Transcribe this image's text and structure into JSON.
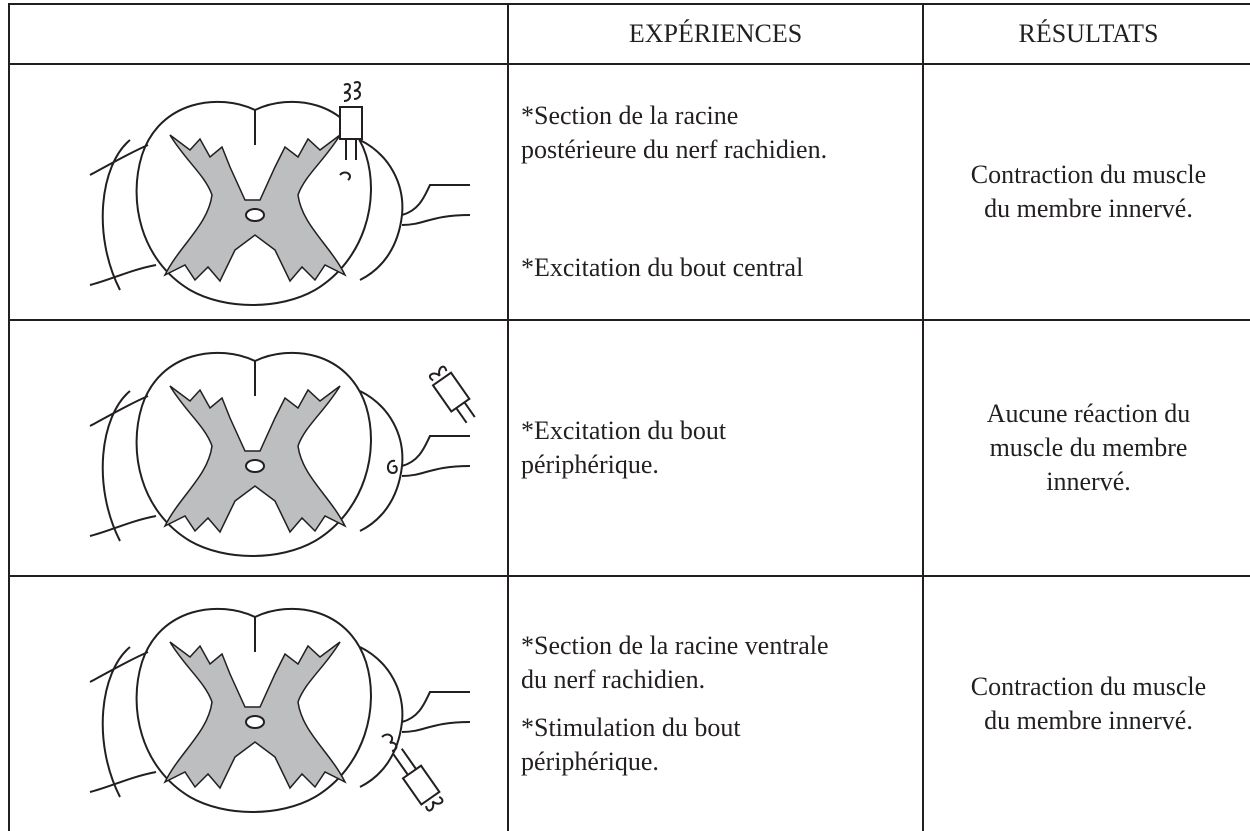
{
  "header": {
    "experiences": "EXPÉRIENCES",
    "resultats": "RÉSULTATS"
  },
  "rows": [
    {
      "experiences": [
        [
          "*Section de la racine",
          "postérieure du nerf rachidien."
        ],
        [
          "*Excitation du bout central"
        ]
      ],
      "resultat": [
        "Contraction du muscle",
        "du membre innervé."
      ]
    },
    {
      "experiences": [
        [
          "*Excitation du bout",
          "périphérique."
        ]
      ],
      "resultat": [
        "Aucune réaction du",
        "muscle du membre",
        "innervé."
      ]
    },
    {
      "experiences": [
        [
          "*Section de la racine ventrale",
          "du nerf rachidien."
        ],
        [
          "*Stimulation du bout",
          "périphérique."
        ]
      ],
      "resultat": [
        "Contraction du muscle",
        "du membre innervé."
      ]
    }
  ]
}
